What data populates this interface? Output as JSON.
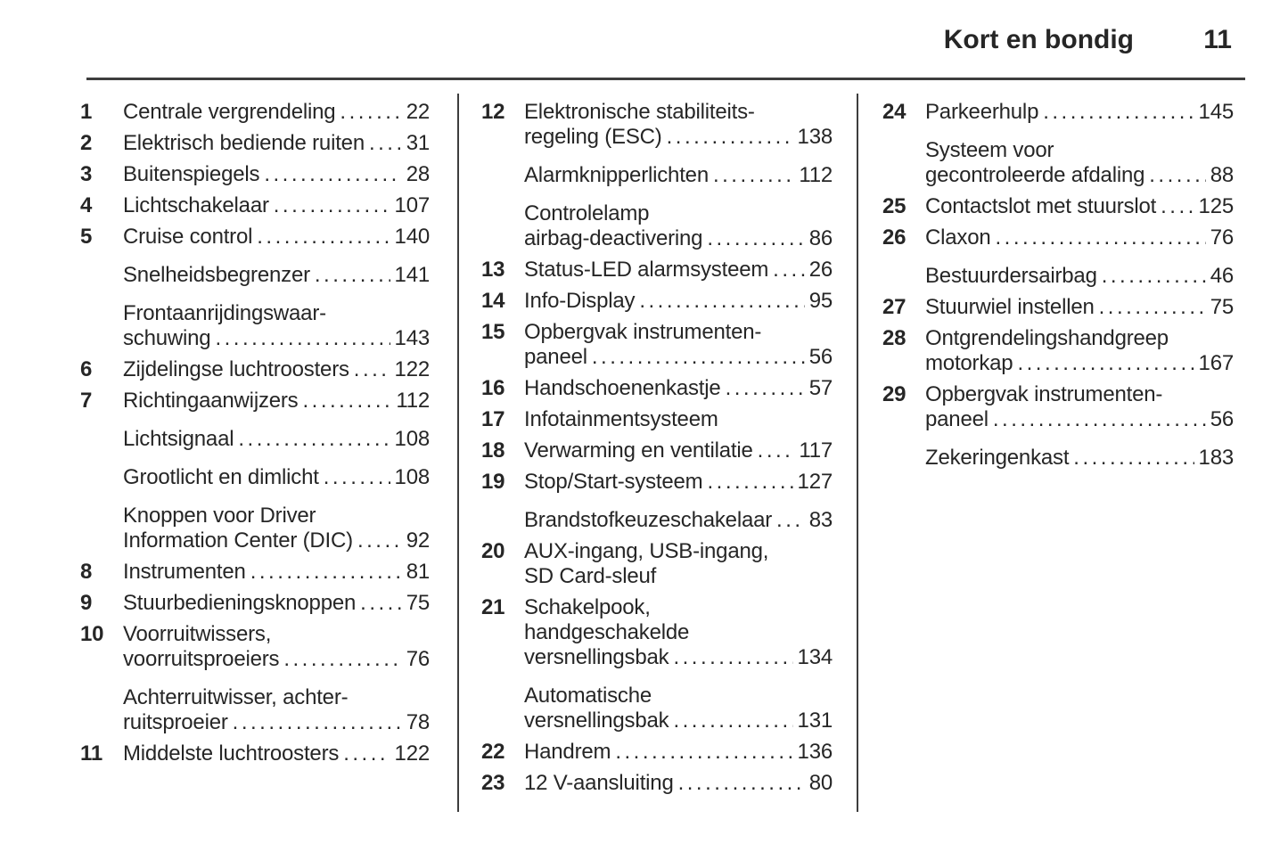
{
  "header": {
    "title": "Kort en bondig",
    "page_number": "11"
  },
  "colors": {
    "text": "#262626",
    "rule": "#3d3d3d",
    "background": "#ffffff"
  },
  "columns": [
    {
      "entries": [
        {
          "num": "1",
          "lines": [
            "Centrale vergrendeling"
          ],
          "page": "22"
        },
        {
          "num": "2",
          "lines": [
            "Elektrisch bediende ruiten"
          ],
          "page": "31"
        },
        {
          "num": "3",
          "lines": [
            "Buitenspiegels"
          ],
          "page": "28"
        },
        {
          "num": "4",
          "lines": [
            "Lichtschakelaar"
          ],
          "page": "107"
        },
        {
          "num": "5",
          "lines": [
            "Cruise control"
          ],
          "page": "140"
        },
        {
          "num": "",
          "lines": [
            "Snelheidsbegrenzer"
          ],
          "page": "141"
        },
        {
          "num": "",
          "lines": [
            "Frontaanrijdingswaar-",
            "schuwing"
          ],
          "page": "143"
        },
        {
          "num": "6",
          "lines": [
            "Zijdelingse luchtroosters"
          ],
          "page": "122"
        },
        {
          "num": "7",
          "lines": [
            "Richtingaanwijzers"
          ],
          "page": "112"
        },
        {
          "num": "",
          "lines": [
            "Lichtsignaal"
          ],
          "page": "108"
        },
        {
          "num": "",
          "lines": [
            "Grootlicht en dimlicht"
          ],
          "page": "108"
        },
        {
          "num": "",
          "lines": [
            "Knoppen voor Driver",
            "Information Center (DIC)"
          ],
          "page": "92"
        },
        {
          "num": "8",
          "lines": [
            "Instrumenten"
          ],
          "page": "81"
        },
        {
          "num": "9",
          "lines": [
            "Stuurbedieningsknoppen"
          ],
          "page": "75"
        },
        {
          "num": "10",
          "lines": [
            "Voorruitwissers,",
            "voorruitsproeiers"
          ],
          "page": "76"
        },
        {
          "num": "",
          "lines": [
            "Achterruitwisser, achter-",
            "ruitsproeier"
          ],
          "page": "78"
        },
        {
          "num": "11",
          "lines": [
            "Middelste luchtroosters"
          ],
          "page": "122"
        }
      ]
    },
    {
      "entries": [
        {
          "num": "12",
          "lines": [
            "Elektronische stabiliteits-",
            "regeling (ESC)"
          ],
          "page": "138"
        },
        {
          "num": "",
          "lines": [
            "Alarmknipperlichten"
          ],
          "page": "112"
        },
        {
          "num": "",
          "lines": [
            "Controlelamp",
            "airbag-deactivering"
          ],
          "page": "86"
        },
        {
          "num": "13",
          "lines": [
            "Status-LED alarmsysteem"
          ],
          "page": "26"
        },
        {
          "num": "14",
          "lines": [
            "Info-Display"
          ],
          "page": "95"
        },
        {
          "num": "15",
          "lines": [
            "Opbergvak instrumenten-",
            "paneel"
          ],
          "page": "56"
        },
        {
          "num": "16",
          "lines": [
            "Handschoenenkastje"
          ],
          "page": "57"
        },
        {
          "num": "17",
          "lines": [
            "Infotainmentsysteem"
          ],
          "page": ""
        },
        {
          "num": "18",
          "lines": [
            "Verwarming en ventilatie"
          ],
          "page": "117"
        },
        {
          "num": "19",
          "lines": [
            "Stop/Start-systeem"
          ],
          "page": "127"
        },
        {
          "num": "",
          "lines": [
            "Brandstofkeuzeschakelaar"
          ],
          "page": "83"
        },
        {
          "num": "20",
          "lines": [
            "AUX-ingang, USB-ingang,",
            "SD Card-sleuf"
          ],
          "page": ""
        },
        {
          "num": "21",
          "lines": [
            "Schakelpook,",
            "handgeschakelde",
            "versnellingsbak"
          ],
          "page": "134"
        },
        {
          "num": "",
          "lines": [
            "Automatische",
            "versnellingsbak"
          ],
          "page": "131"
        },
        {
          "num": "22",
          "lines": [
            "Handrem"
          ],
          "page": "136"
        },
        {
          "num": "23",
          "lines": [
            "12 V-aansluiting"
          ],
          "page": "80"
        }
      ]
    },
    {
      "entries": [
        {
          "num": "24",
          "lines": [
            "Parkeerhulp"
          ],
          "page": "145"
        },
        {
          "num": "",
          "lines": [
            "Systeem voor",
            "gecontroleerde afdaling"
          ],
          "page": "88"
        },
        {
          "num": "25",
          "lines": [
            "Contactslot met stuurslot"
          ],
          "page": "125"
        },
        {
          "num": "26",
          "lines": [
            "Claxon"
          ],
          "page": "76"
        },
        {
          "num": "",
          "lines": [
            "Bestuurdersairbag"
          ],
          "page": "46"
        },
        {
          "num": "27",
          "lines": [
            "Stuurwiel instellen"
          ],
          "page": "75"
        },
        {
          "num": "28",
          "lines": [
            "Ontgrendelingshandgreep",
            "motorkap"
          ],
          "page": "167"
        },
        {
          "num": "29",
          "lines": [
            "Opbergvak instrumenten-",
            "paneel"
          ],
          "page": "56"
        },
        {
          "num": "",
          "lines": [
            "Zekeringenkast"
          ],
          "page": "183"
        }
      ]
    }
  ]
}
